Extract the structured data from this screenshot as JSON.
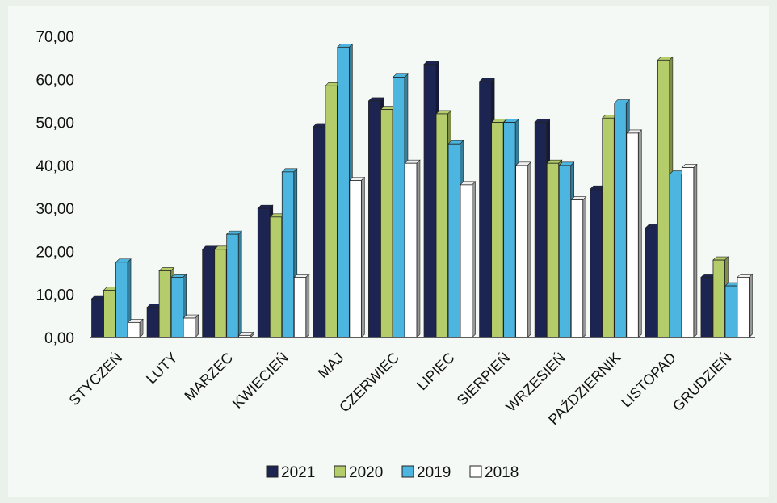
{
  "chart_data": {
    "type": "bar",
    "title": "",
    "xlabel": "",
    "ylabel": "",
    "ylim": [
      0,
      70
    ],
    "yticks": [
      "0,00",
      "10,00",
      "20,00",
      "30,00",
      "40,00",
      "50,00",
      "60,00",
      "70,00"
    ],
    "grid": false,
    "legend_position": "bottom",
    "categories": [
      "STYCZEŃ",
      "LUTY",
      "MARZEC",
      "KWIECIEŃ",
      "MAJ",
      "CZERWIEC",
      "LIPIEC",
      "SIERPIEŃ",
      "WRZESIEŃ",
      "PAŹDZIERNIK",
      "LISTOPAD",
      "GRUDZIEŃ"
    ],
    "series": [
      {
        "name": "2021",
        "color": "#1c2452",
        "values": [
          9,
          7,
          20.5,
          30,
          49,
          55,
          63.5,
          59.5,
          50,
          34.5,
          25.5,
          14
        ]
      },
      {
        "name": "2020",
        "color": "#b5cc6a",
        "values": [
          11,
          15.5,
          20.5,
          28,
          58.5,
          53,
          52,
          50,
          40.5,
          51,
          64.5,
          18
        ]
      },
      {
        "name": "2019",
        "color": "#4cb6e0",
        "values": [
          17.5,
          14,
          24,
          38.5,
          67.5,
          60.5,
          45,
          50,
          40,
          54.5,
          38,
          12
        ]
      },
      {
        "name": "2018",
        "color": "#ffffff",
        "values": [
          3.5,
          4.5,
          0.5,
          14,
          36.5,
          40.5,
          35.5,
          40,
          32,
          47.5,
          39.5,
          14
        ]
      }
    ]
  }
}
